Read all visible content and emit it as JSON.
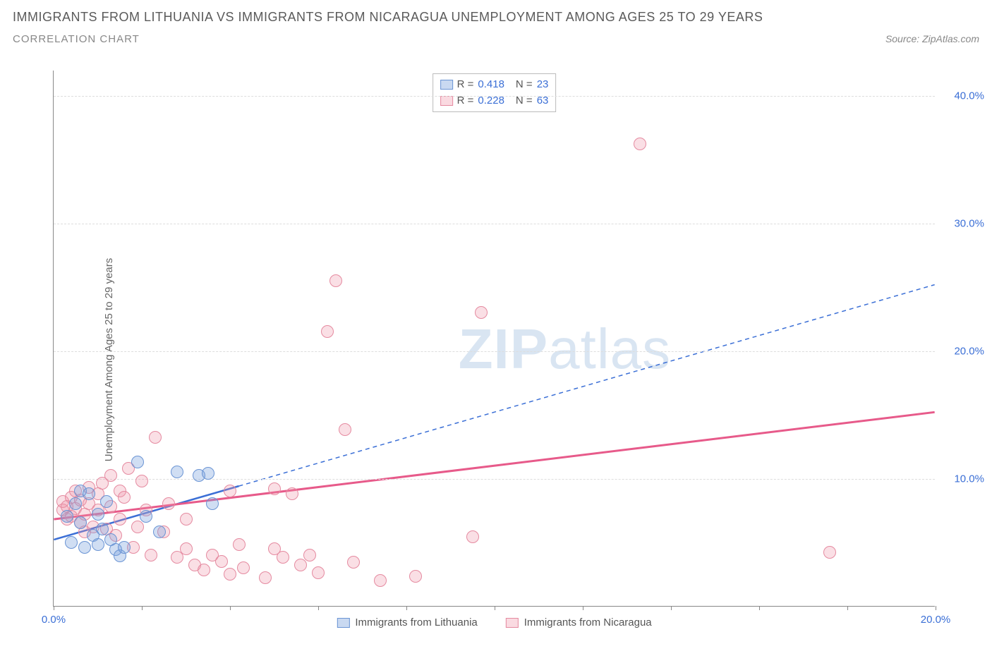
{
  "header": {
    "title": "IMMIGRANTS FROM LITHUANIA VS IMMIGRANTS FROM NICARAGUA UNEMPLOYMENT AMONG AGES 25 TO 29 YEARS",
    "subtitle": "CORRELATION CHART",
    "source": "Source: ZipAtlas.com"
  },
  "watermark": {
    "bold": "ZIP",
    "light": "atlas"
  },
  "chart": {
    "type": "scatter",
    "ylabel": "Unemployment Among Ages 25 to 29 years",
    "xlim": [
      0,
      20
    ],
    "ylim": [
      0,
      42
    ],
    "xtick_positions": [
      0,
      2,
      4,
      6,
      8,
      10,
      12,
      14,
      16,
      18,
      20
    ],
    "xtick_labels": {
      "0": "0.0%",
      "20": "20.0%"
    },
    "yticks": [
      {
        "v": 10,
        "label": "10.0%"
      },
      {
        "v": 20,
        "label": "20.0%"
      },
      {
        "v": 30,
        "label": "30.0%"
      },
      {
        "v": 40,
        "label": "40.0%"
      }
    ],
    "grid_color": "#dddddd",
    "background_color": "#ffffff",
    "series": [
      {
        "name": "Immigrants from Lithuania",
        "color_fill": "rgba(120,160,220,0.35)",
        "color_stroke": "#6a94d4",
        "R": "0.418",
        "N": "23",
        "trend": {
          "x1": 0,
          "y1": 5.2,
          "x2": 4.2,
          "y2": 9.4,
          "dash_x2": 20,
          "dash_y2": 25.2,
          "color": "#3b6fd6",
          "width": 2.5
        },
        "points": [
          [
            0.3,
            7.0
          ],
          [
            0.4,
            5.0
          ],
          [
            0.5,
            8.0
          ],
          [
            0.6,
            6.5
          ],
          [
            0.6,
            9.0
          ],
          [
            0.7,
            4.6
          ],
          [
            0.8,
            8.8
          ],
          [
            0.9,
            5.5
          ],
          [
            1.0,
            7.2
          ],
          [
            1.0,
            4.8
          ],
          [
            1.1,
            6.0
          ],
          [
            1.2,
            8.2
          ],
          [
            1.3,
            5.2
          ],
          [
            1.4,
            4.4
          ],
          [
            1.5,
            3.9
          ],
          [
            1.6,
            4.6
          ],
          [
            1.9,
            11.3
          ],
          [
            2.1,
            7.0
          ],
          [
            2.4,
            5.8
          ],
          [
            2.8,
            10.5
          ],
          [
            3.3,
            10.2
          ],
          [
            3.5,
            10.4
          ],
          [
            3.6,
            8.0
          ]
        ]
      },
      {
        "name": "Immigrants from Nicaragua",
        "color_fill": "rgba(240,150,170,0.3)",
        "color_stroke": "#e58aa0",
        "R": "0.228",
        "N": "63",
        "trend": {
          "x1": 0,
          "y1": 6.8,
          "x2": 20,
          "y2": 15.2,
          "color": "#e75a8a",
          "width": 3
        },
        "points": [
          [
            0.2,
            7.5
          ],
          [
            0.2,
            8.2
          ],
          [
            0.3,
            6.8
          ],
          [
            0.3,
            7.8
          ],
          [
            0.4,
            8.5
          ],
          [
            0.4,
            7.0
          ],
          [
            0.5,
            7.6
          ],
          [
            0.5,
            9.0
          ],
          [
            0.6,
            6.5
          ],
          [
            0.6,
            8.3
          ],
          [
            0.7,
            7.2
          ],
          [
            0.7,
            5.8
          ],
          [
            0.8,
            8.0
          ],
          [
            0.8,
            9.3
          ],
          [
            0.9,
            6.2
          ],
          [
            1.0,
            7.5
          ],
          [
            1.0,
            8.8
          ],
          [
            1.1,
            9.6
          ],
          [
            1.2,
            6.0
          ],
          [
            1.3,
            7.8
          ],
          [
            1.3,
            10.2
          ],
          [
            1.4,
            5.5
          ],
          [
            1.5,
            9.0
          ],
          [
            1.5,
            6.8
          ],
          [
            1.6,
            8.5
          ],
          [
            1.7,
            10.8
          ],
          [
            1.8,
            4.6
          ],
          [
            1.9,
            6.2
          ],
          [
            2.0,
            9.8
          ],
          [
            2.1,
            7.5
          ],
          [
            2.2,
            4.0
          ],
          [
            2.3,
            13.2
          ],
          [
            2.5,
            5.8
          ],
          [
            2.6,
            8.0
          ],
          [
            2.8,
            3.8
          ],
          [
            3.0,
            4.5
          ],
          [
            3.0,
            6.8
          ],
          [
            3.2,
            3.2
          ],
          [
            3.4,
            2.8
          ],
          [
            3.6,
            4.0
          ],
          [
            3.8,
            3.5
          ],
          [
            4.0,
            2.5
          ],
          [
            4.0,
            9.0
          ],
          [
            4.2,
            4.8
          ],
          [
            4.3,
            3.0
          ],
          [
            4.8,
            2.2
          ],
          [
            5.0,
            4.5
          ],
          [
            5.2,
            3.8
          ],
          [
            5.4,
            8.8
          ],
          [
            5.6,
            3.2
          ],
          [
            5.8,
            4.0
          ],
          [
            6.0,
            2.6
          ],
          [
            6.2,
            21.5
          ],
          [
            6.4,
            25.5
          ],
          [
            6.6,
            13.8
          ],
          [
            6.8,
            3.4
          ],
          [
            7.4,
            2.0
          ],
          [
            8.2,
            2.3
          ],
          [
            9.5,
            5.4
          ],
          [
            9.7,
            23.0
          ],
          [
            13.3,
            36.2
          ],
          [
            17.6,
            4.2
          ],
          [
            5.0,
            9.2
          ]
        ]
      }
    ],
    "legend_bottom": [
      {
        "swatch": "blue",
        "label": "Immigrants from Lithuania"
      },
      {
        "swatch": "pink",
        "label": "Immigrants from Nicaragua"
      }
    ]
  }
}
